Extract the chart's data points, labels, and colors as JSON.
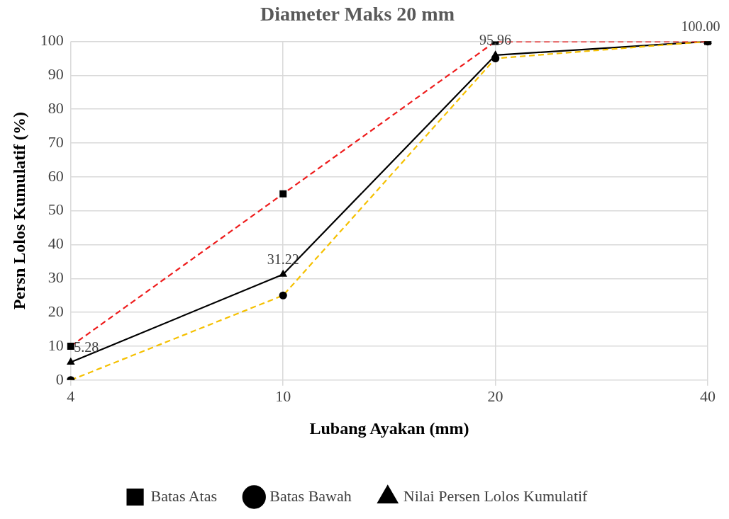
{
  "chart_data": {
    "type": "line",
    "title": "Diameter Maks 20 mm",
    "xlabel": "Lubang Ayakan (mm)",
    "ylabel": "Persn Lolos Kumulatif (%)",
    "categories": [
      "4",
      "10",
      "20",
      "40"
    ],
    "series": [
      {
        "name": "Batas Bawah",
        "color": "#f5c000",
        "values": [
          0,
          25,
          95,
          100
        ],
        "marker": "circle",
        "line_style": "dashed"
      },
      {
        "name": "Batas Atas",
        "color": "#ee1c1c",
        "values": [
          10,
          55,
          100,
          100
        ],
        "marker": "square",
        "line_style": "dashed"
      },
      {
        "name": "Nilai Persen Lolos Kumulatif",
        "color": "#000000",
        "values": [
          5.28,
          31.22,
          95.96,
          100.0
        ],
        "marker": "triangle",
        "line_style": "solid",
        "value_labels": [
          "5.28",
          "31.22",
          "95.96",
          "100.00"
        ]
      }
    ],
    "ylim": [
      0,
      100
    ],
    "yticks": [
      0,
      10,
      20,
      30,
      40,
      50,
      60,
      70,
      80,
      90,
      100
    ],
    "grid": true,
    "legend": "bottom"
  }
}
